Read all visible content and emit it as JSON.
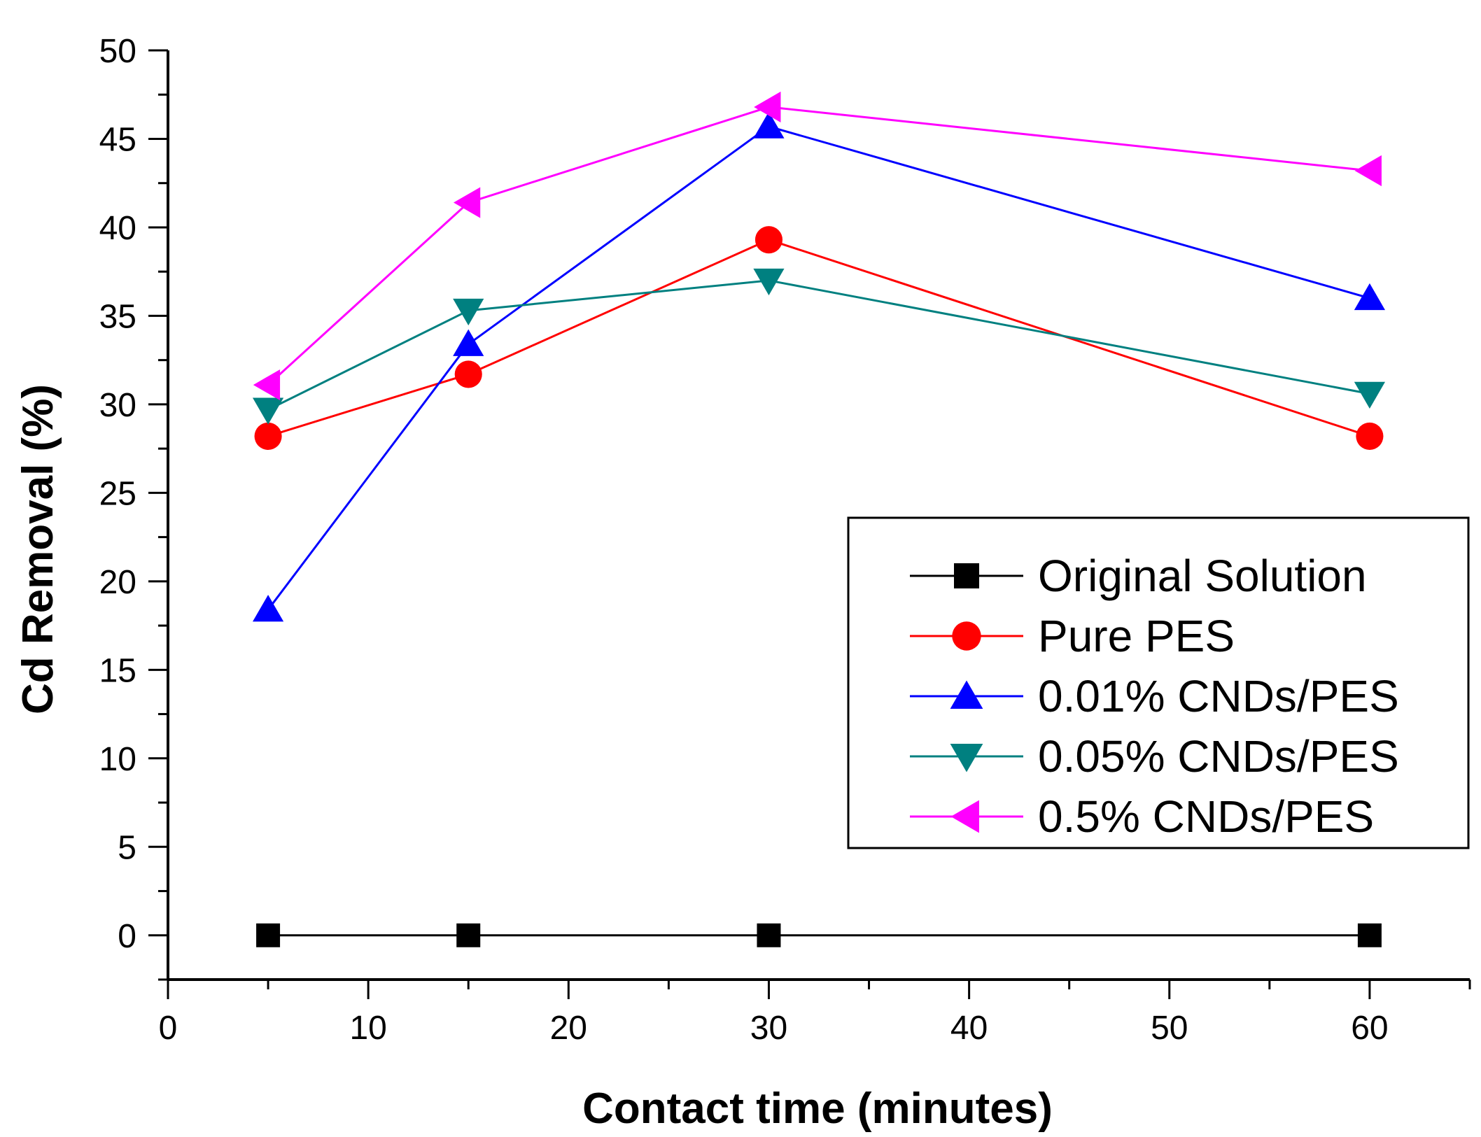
{
  "chart_data": {
    "type": "line",
    "title": "",
    "xlabel": "Contact time (minutes)",
    "ylabel": "Cd Removal (%)",
    "xlim": [
      0,
      65
    ],
    "ylim": [
      -2.5,
      50
    ],
    "x_ticks": [
      0,
      10,
      20,
      30,
      40,
      50,
      60
    ],
    "y_ticks": [
      0,
      5,
      10,
      15,
      20,
      25,
      30,
      35,
      40,
      45,
      50
    ],
    "x": [
      5,
      15,
      30,
      60
    ],
    "legend_position": "center-right",
    "series": [
      {
        "name": "Original Solution",
        "marker": "square",
        "color": "#000000",
        "values": [
          0,
          0,
          0,
          0
        ]
      },
      {
        "name": "Pure PES",
        "marker": "circle",
        "color": "#ff0000",
        "values": [
          28.2,
          31.7,
          39.3,
          28.2
        ]
      },
      {
        "name": "0.01% CNDs/PES",
        "marker": "triangle-up",
        "color": "#0000ff",
        "values": [
          18.4,
          33.4,
          45.7,
          36.0
        ]
      },
      {
        "name": "0.05% CNDs/PES",
        "marker": "triangle-down",
        "color": "#008080",
        "values": [
          29.7,
          35.3,
          37.0,
          30.6
        ]
      },
      {
        "name": "0.5% CNDs/PES",
        "marker": "triangle-left",
        "color": "#ff00ff",
        "values": [
          31.1,
          41.4,
          46.8,
          43.2
        ]
      }
    ]
  }
}
